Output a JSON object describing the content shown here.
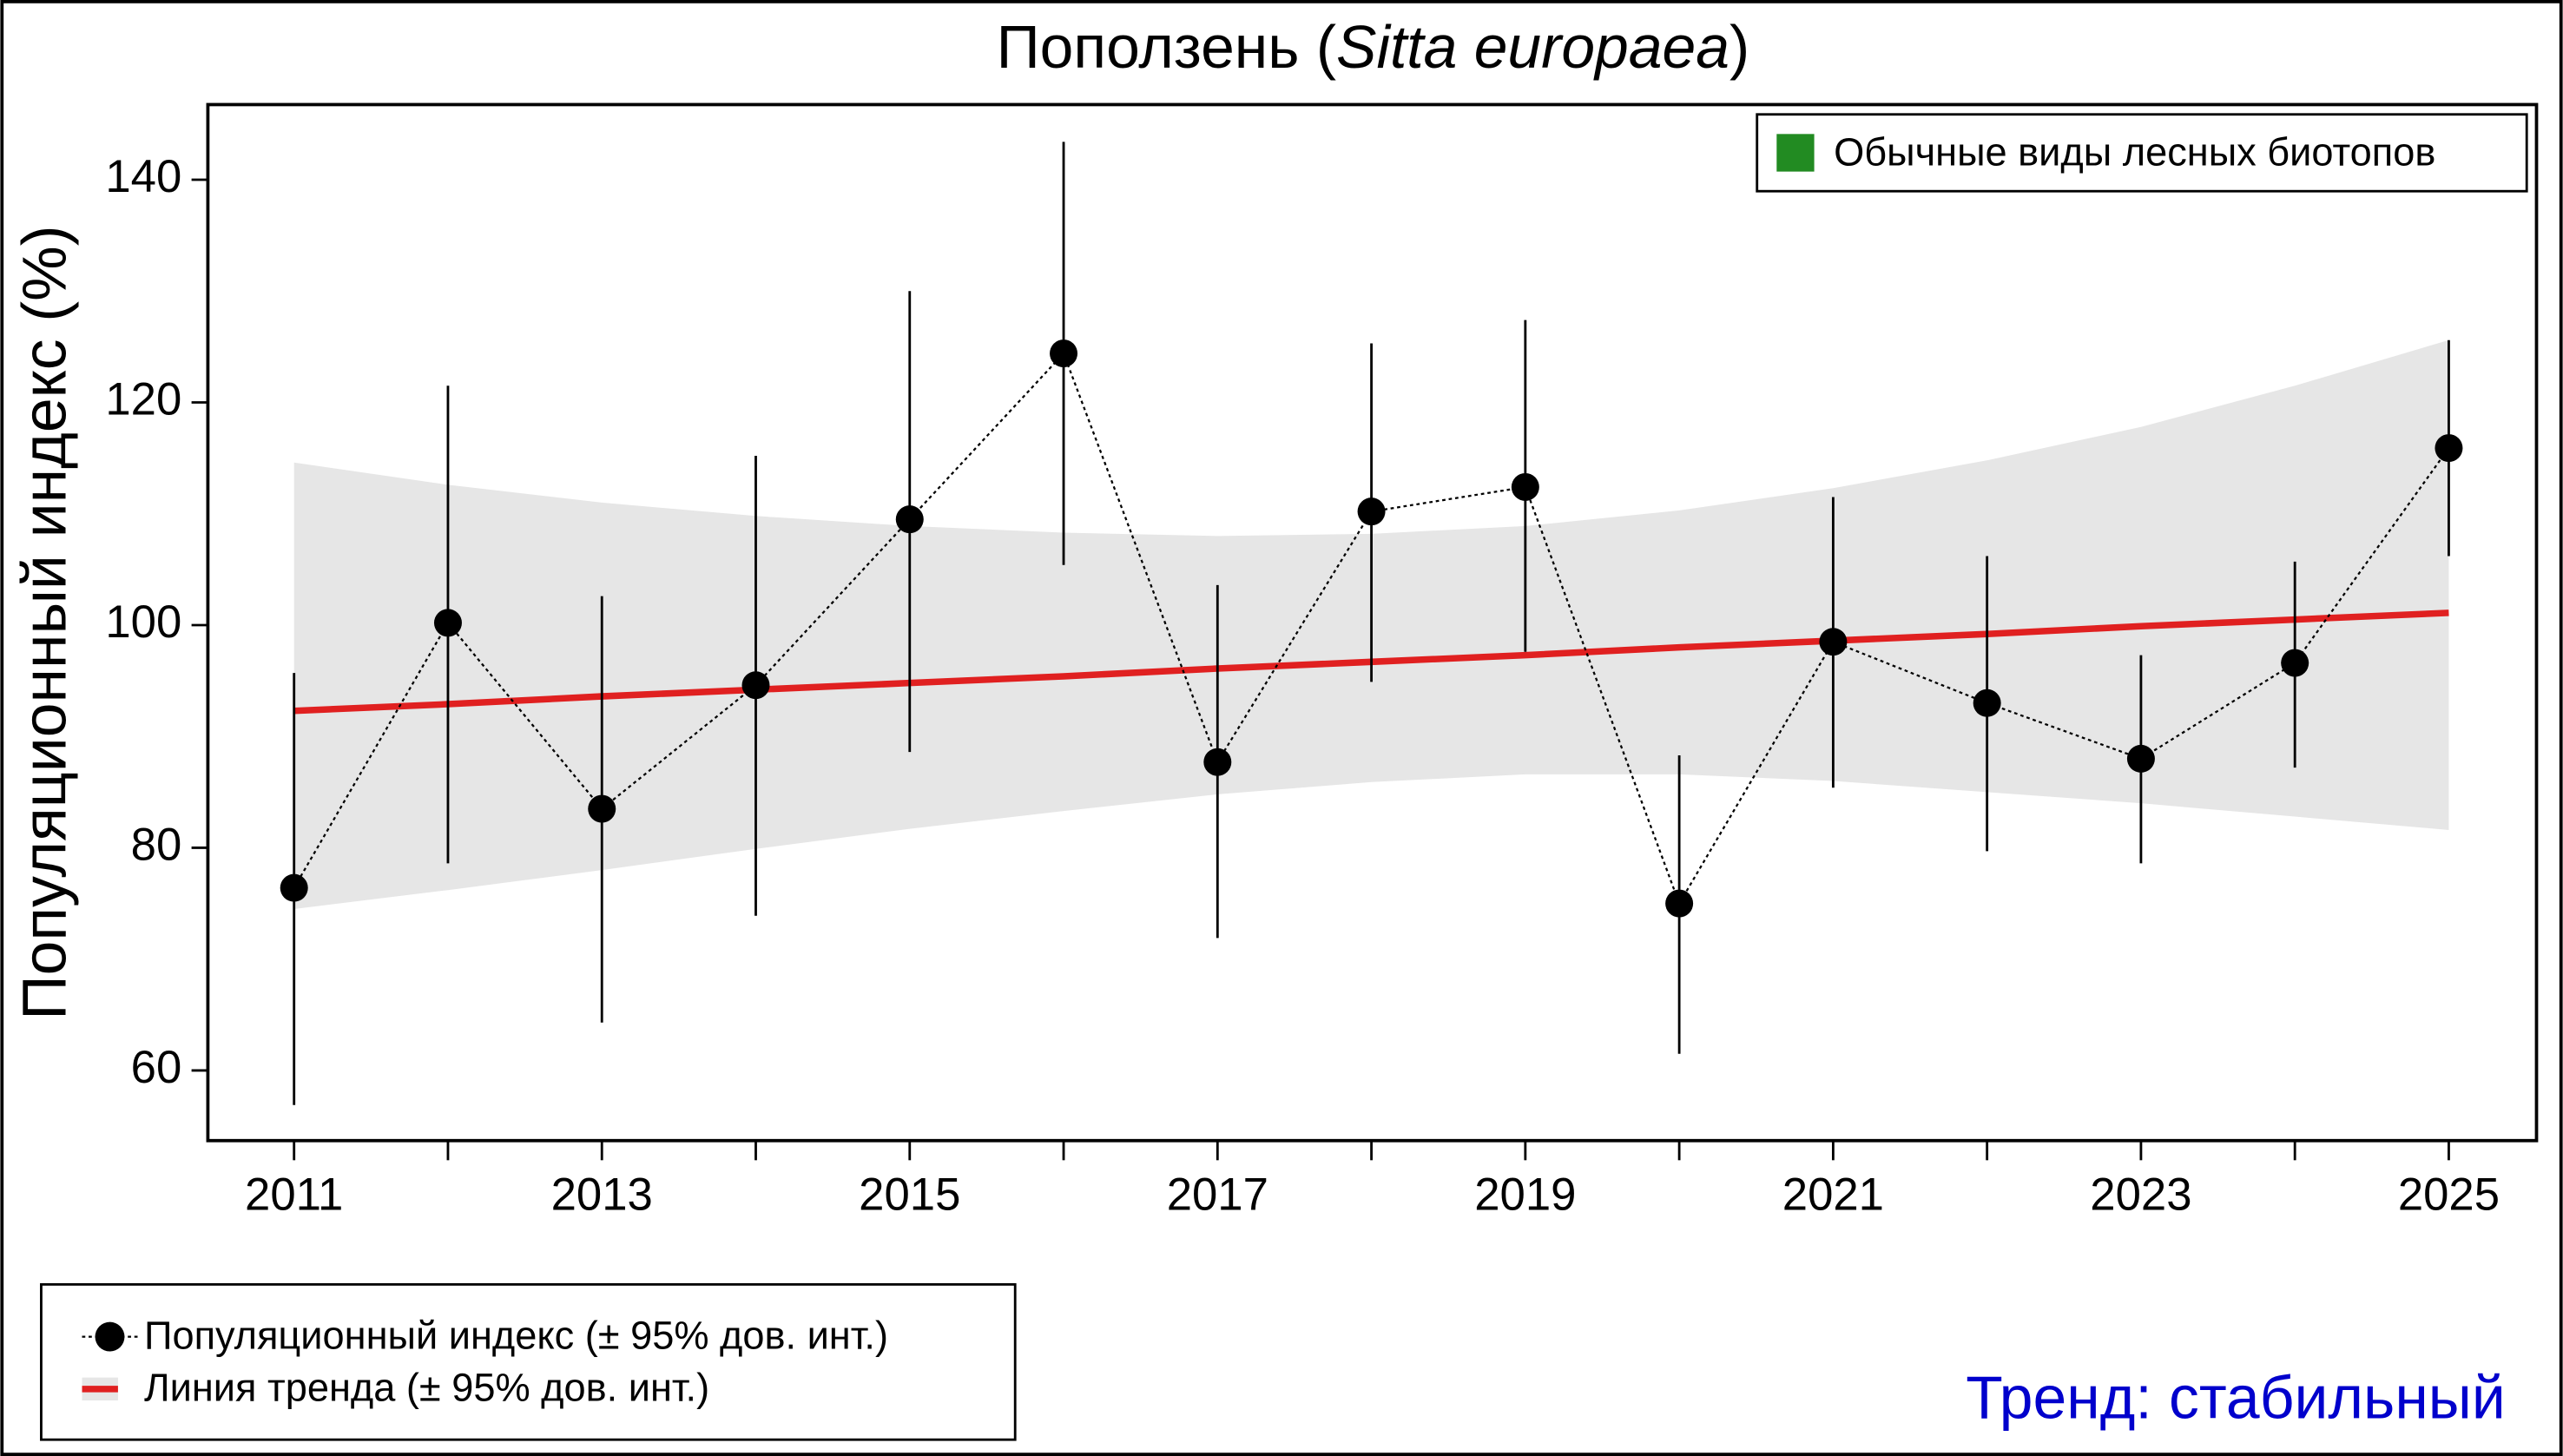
{
  "chart_data": {
    "type": "errorbar-line",
    "title_parts": [
      {
        "text": "Поползень ("
      },
      {
        "text": "Sitta europaea",
        "italic": true
      },
      {
        "text": ")"
      }
    ],
    "y_label": "Популяционный индекс (%)",
    "x": [
      2011,
      2012,
      2013,
      2014,
      2015,
      2016,
      2017,
      2018,
      2019,
      2020,
      2021,
      2022,
      2023,
      2024,
      2025
    ],
    "series": [
      {
        "name": "Популяционный индекс (± 95% дов. инт.)",
        "color": "#000000",
        "values": [
          76.4,
          100.2,
          83.5,
          94.6,
          109.5,
          124.4,
          87.7,
          110.2,
          112.4,
          75.0,
          98.5,
          93.0,
          88.0,
          96.6,
          115.9
        ],
        "lower": [
          56.9,
          78.6,
          64.3,
          73.9,
          88.6,
          105.4,
          71.9,
          94.9,
          97.6,
          61.5,
          85.4,
          79.7,
          78.6,
          87.2,
          106.2
        ],
        "upper": [
          95.7,
          121.5,
          102.6,
          115.2,
          130.0,
          143.4,
          103.6,
          125.3,
          127.4,
          88.3,
          111.5,
          106.2,
          97.3,
          105.7,
          125.6
        ]
      }
    ],
    "trend": {
      "name": "Линия тренда (± 95% дов. инт.)",
      "color": "#e02020",
      "band_color": "#e6e6e6",
      "values": [
        92.3,
        92.9,
        93.6,
        94.2,
        94.8,
        95.4,
        96.1,
        96.7,
        97.3,
        98.0,
        98.6,
        99.2,
        99.9,
        100.5,
        101.1
      ],
      "lower": [
        74.5,
        76.2,
        78.0,
        79.9,
        81.7,
        83.3,
        84.8,
        85.9,
        86.6,
        86.6,
        86.0,
        85.0,
        84.0,
        82.8,
        81.6
      ],
      "upper": [
        114.6,
        112.6,
        111.0,
        109.8,
        108.9,
        108.3,
        108.0,
        108.2,
        108.9,
        110.3,
        112.3,
        114.8,
        117.8,
        121.5,
        125.6
      ]
    },
    "group_legend": {
      "name": "Обычные виды лесных биотопов",
      "color": "#228b22"
    },
    "trend_text": "Тренд: стабильный",
    "trend_text_color": "#0000cc",
    "xlim": [
      2010.44,
      2025.57
    ],
    "ylim": [
      53.7,
      146.75
    ],
    "xticks": [
      2011,
      2013,
      2015,
      2017,
      2019,
      2021,
      2023,
      2025
    ],
    "xminor_ticks": [
      2012,
      2014,
      2016,
      2018,
      2020,
      2022,
      2024
    ],
    "yticks": [
      60,
      80,
      100,
      120,
      140
    ]
  }
}
